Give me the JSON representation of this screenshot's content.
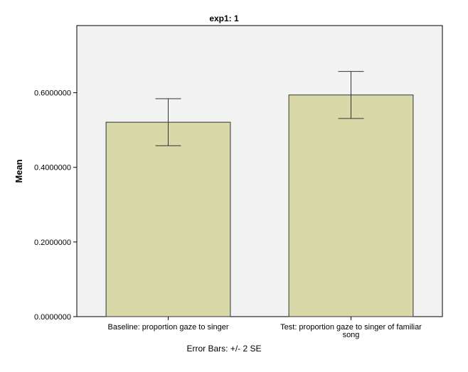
{
  "chart_data": {
    "type": "bar",
    "title": "exp1: 1",
    "ylabel": "Mean",
    "xlabel": "",
    "categories": [
      [
        "Baseline: proportion gaze to singer"
      ],
      [
        "Test: proportion gaze to singer of familiar",
        "song"
      ]
    ],
    "values": [
      0.521,
      0.594
    ],
    "error_bars": [
      {
        "low": 0.458,
        "high": 0.584
      },
      {
        "low": 0.531,
        "high": 0.657
      }
    ],
    "yticks": [
      "0.0000000",
      "0.2000000",
      "0.4000000",
      "0.6000000"
    ],
    "ylim": [
      0,
      0.78
    ],
    "footnote": "Error Bars: +/- 2 SE",
    "colors": {
      "bar_fill": "#d8d8a8",
      "bar_stroke": "#333333",
      "plot_bg": "#f2f2f2",
      "axis": "#000000"
    }
  }
}
